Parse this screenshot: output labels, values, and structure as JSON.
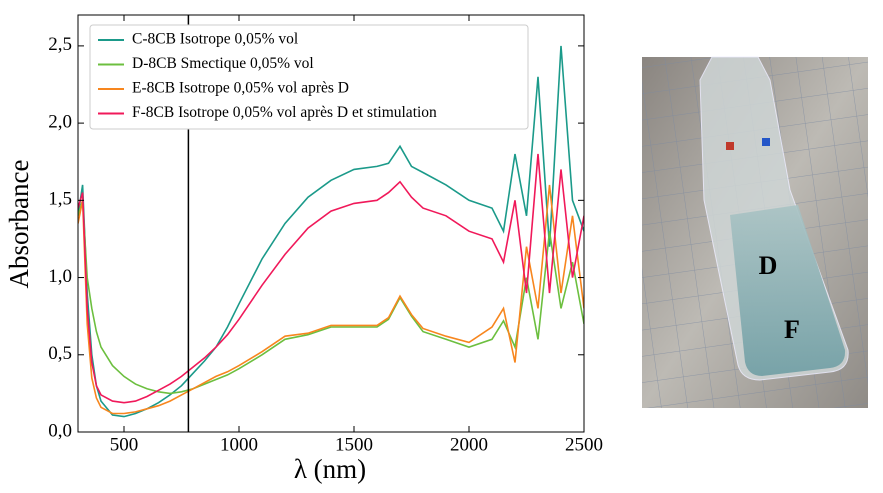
{
  "chart_data": {
    "type": "line",
    "xlabel": "λ (nm)",
    "ylabel": "Absorbance",
    "x": [
      300,
      320,
      340,
      360,
      380,
      400,
      450,
      500,
      550,
      600,
      650,
      700,
      750,
      800,
      850,
      900,
      950,
      1000,
      1100,
      1200,
      1300,
      1400,
      1500,
      1600,
      1650,
      1700,
      1750,
      1800,
      1900,
      2000,
      2100,
      2150,
      2200,
      2250,
      2300,
      2350,
      2400,
      2450,
      2500
    ],
    "series": [
      {
        "name": "C-8CB Isotrope 0,05% vol",
        "color": "#1b9a8a",
        "values": [
          1.4,
          1.6,
          0.9,
          0.5,
          0.3,
          0.2,
          0.11,
          0.1,
          0.12,
          0.15,
          0.19,
          0.24,
          0.3,
          0.38,
          0.46,
          0.55,
          0.68,
          0.83,
          1.12,
          1.35,
          1.52,
          1.63,
          1.7,
          1.72,
          1.74,
          1.85,
          1.72,
          1.68,
          1.6,
          1.5,
          1.45,
          1.3,
          1.8,
          1.4,
          2.3,
          1.2,
          2.5,
          1.5,
          1.3
        ]
      },
      {
        "name": "D-8CB Smectique 0,05% vol",
        "color": "#6cbf3f",
        "values": [
          1.4,
          1.5,
          1.0,
          0.8,
          0.65,
          0.55,
          0.43,
          0.36,
          0.31,
          0.28,
          0.26,
          0.25,
          0.26,
          0.28,
          0.31,
          0.34,
          0.37,
          0.41,
          0.5,
          0.6,
          0.63,
          0.68,
          0.68,
          0.68,
          0.73,
          0.87,
          0.75,
          0.65,
          0.6,
          0.55,
          0.6,
          0.72,
          0.55,
          1.0,
          0.6,
          1.3,
          0.8,
          1.1,
          0.7
        ]
      },
      {
        "name": "E-8CB Isotrope 0,05% vol après D",
        "color": "#f7861e",
        "values": [
          1.35,
          1.5,
          0.7,
          0.35,
          0.22,
          0.16,
          0.12,
          0.12,
          0.13,
          0.15,
          0.17,
          0.2,
          0.24,
          0.28,
          0.32,
          0.36,
          0.39,
          0.43,
          0.52,
          0.62,
          0.64,
          0.69,
          0.69,
          0.69,
          0.74,
          0.88,
          0.76,
          0.67,
          0.62,
          0.58,
          0.68,
          0.8,
          0.45,
          1.2,
          0.8,
          1.6,
          0.9,
          1.4,
          0.8
        ]
      },
      {
        "name": "F-8CB Isotrope 0,05% vol après D et stimulation",
        "color": "#f0195a",
        "values": [
          1.45,
          1.55,
          0.8,
          0.45,
          0.3,
          0.24,
          0.2,
          0.19,
          0.2,
          0.23,
          0.27,
          0.31,
          0.36,
          0.42,
          0.48,
          0.55,
          0.63,
          0.73,
          0.95,
          1.15,
          1.32,
          1.43,
          1.48,
          1.5,
          1.55,
          1.62,
          1.52,
          1.45,
          1.4,
          1.3,
          1.25,
          1.1,
          1.5,
          0.9,
          1.8,
          0.9,
          1.7,
          1.0,
          1.4
        ]
      }
    ],
    "xlim": [
      300,
      2500
    ],
    "ylim": [
      0,
      2.7
    ],
    "xticks": [
      500,
      1000,
      1500,
      2000,
      2500
    ],
    "yticks": [
      {
        "value": 0,
        "label": "0,0"
      },
      {
        "value": 0.5,
        "label": "0,5"
      },
      {
        "value": 1,
        "label": "1,0"
      },
      {
        "value": 1.5,
        "label": "1,5"
      },
      {
        "value": 2,
        "label": "2,0"
      },
      {
        "value": 2.5,
        "label": "2,5"
      }
    ],
    "vlines": [
      780
    ],
    "legend": "upper left",
    "grid": false
  },
  "photo": {
    "labels": [
      "D",
      "F"
    ]
  }
}
